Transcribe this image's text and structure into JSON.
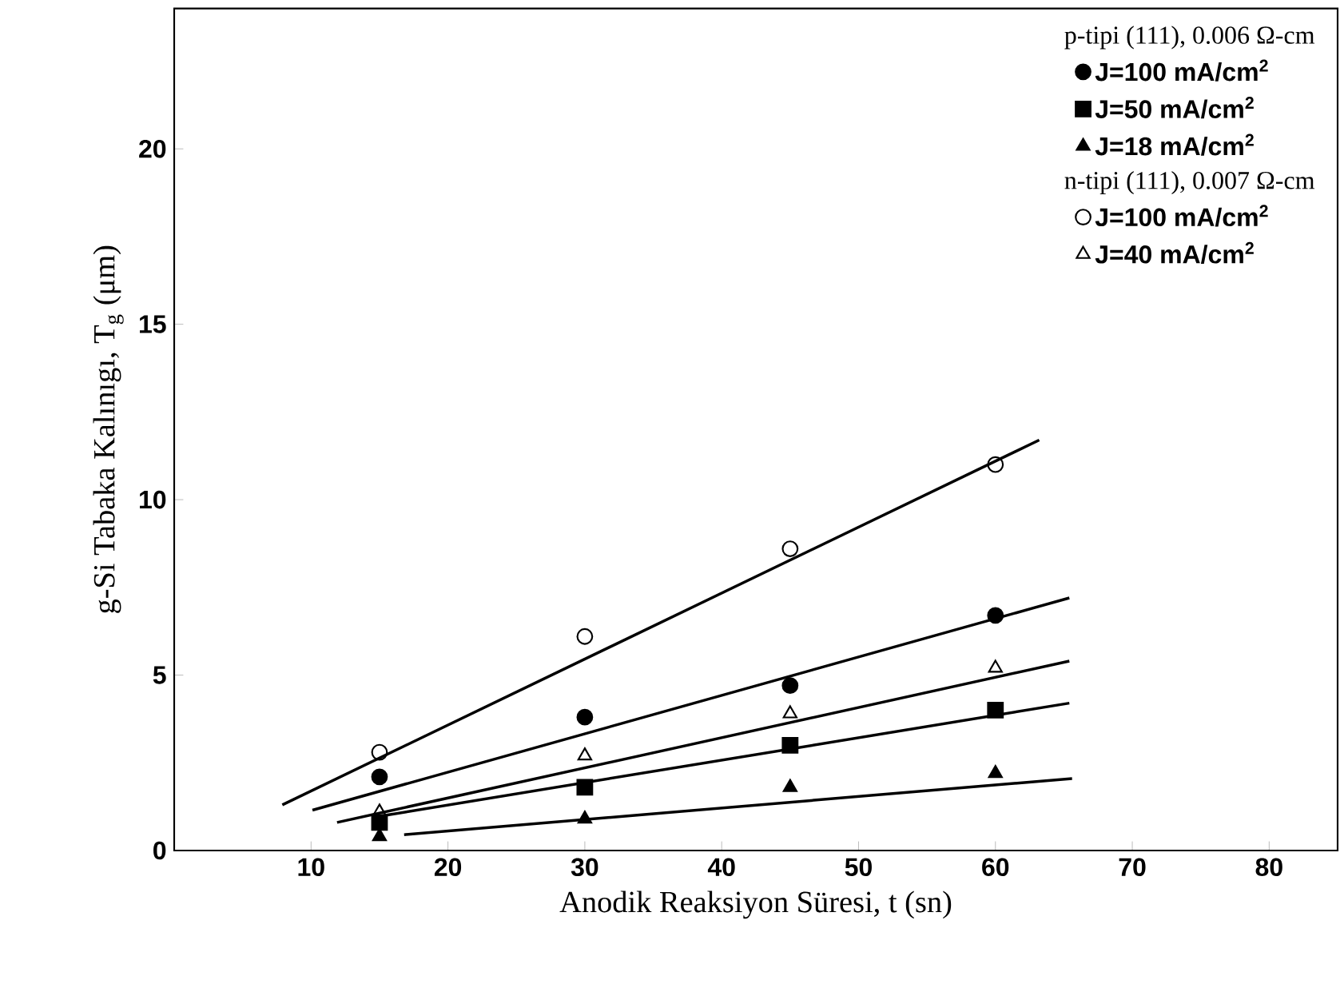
{
  "chart_data": {
    "type": "scatter",
    "xlabel": "Anodik Reaksiyon Süresi,  t (sn)",
    "ylabel": "g-Si Tabaka Kalınıgı, T$_{g}$ (μm)",
    "annotations": [
      "p-tipi (111), 0.006 Ω-cm",
      "n-tipi (111), 0.007 Ω-cm"
    ],
    "x": [
      15,
      30,
      45,
      60
    ],
    "series": [
      {
        "name": "J=100 mA/cm$^{2}$",
        "color": "#000000",
        "marker": "circle",
        "values": [
          2.1,
          3.8,
          4.7,
          6.7
        ]
      },
      {
        "name": "J=50 mA/cm$^{2}$",
        "color": "#000000",
        "marker": "square",
        "values": [
          0.8,
          1.8,
          3.0,
          4.0
        ]
      },
      {
        "name": "J=18 mA/cm$^{2}$",
        "color": "#000000",
        "marker": "triangle",
        "values": [
          0.4,
          0.9,
          1.8,
          2.2
        ]
      },
      {
        "name": "J=100 mA/cm$^{2}$",
        "color": "#000000",
        "marker": "circle open",
        "values": [
          2.8,
          6.1,
          8.6,
          11.0
        ]
      },
      {
        "name": "J=40 mA/cm$^{2}$",
        "color": "#000000",
        "marker": "triangle open",
        "values": [
          1.1,
          2.7,
          3.9,
          5.2
        ]
      },
      {
        "type": "line",
        "color": "#000000",
        "x": [
          7.9,
          63.2
        ],
        "values": [
          1.3,
          11.7
        ]
      },
      {
        "type": "line",
        "color": "#000000",
        "x": [
          10.1,
          65.4
        ],
        "values": [
          1.15,
          7.2
        ]
      },
      {
        "type": "line",
        "color": "#000000",
        "x": [
          11.9,
          65.4
        ],
        "values": [
          0.8,
          5.4
        ]
      },
      {
        "type": "line",
        "color": "#000000",
        "x": [
          14.6,
          65.4
        ],
        "values": [
          0.95,
          4.2
        ]
      },
      {
        "type": "line",
        "color": "#000000",
        "x": [
          16.8,
          65.6
        ],
        "values": [
          0.45,
          2.05
        ]
      }
    ],
    "xlim": [
      0,
      85
    ],
    "ylim": [
      0,
      24
    ],
    "xticks": [
      10,
      20,
      30,
      40,
      50,
      60,
      70,
      80
    ],
    "yticks": [
      0,
      5,
      10,
      15,
      20
    ],
    "grid": false,
    "legend": "top right"
  }
}
